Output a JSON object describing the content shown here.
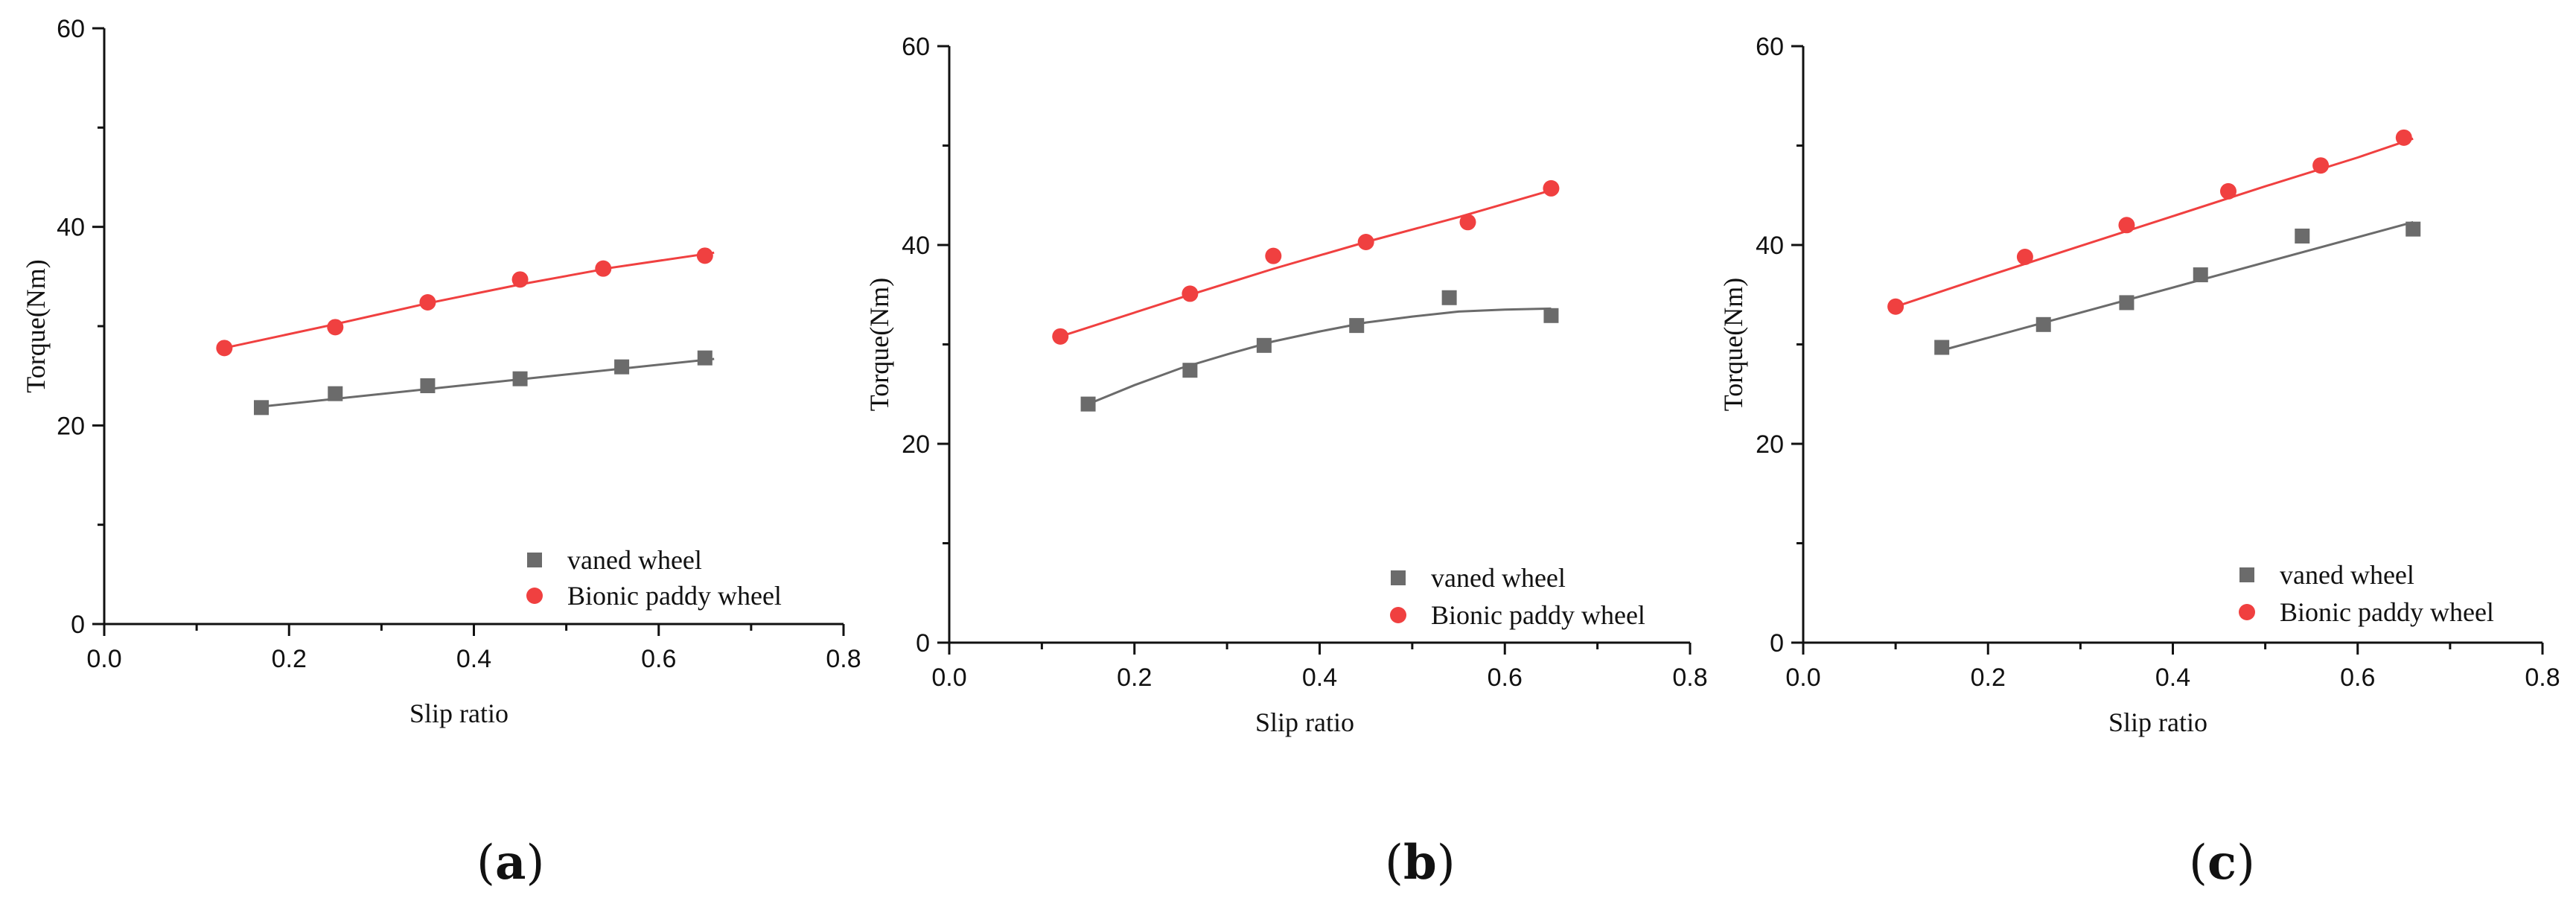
{
  "chart_data": [
    {
      "type": "scatter",
      "panel_label": "a",
      "xlabel": "Slip ratio",
      "ylabel": "Torque(Nm)",
      "xlim": [
        0.0,
        0.8
      ],
      "ylim": [
        0,
        60
      ],
      "xticks": [
        "0.0",
        "0.2",
        "0.4",
        "0.6",
        "0.8"
      ],
      "yticks": [
        "0",
        "20",
        "40",
        "60"
      ],
      "legend_position": "bottom-right",
      "series": [
        {
          "name": "vaned wheel",
          "marker": "square",
          "color": "#6b6b6b",
          "x": [
            0.17,
            0.25,
            0.35,
            0.45,
            0.56,
            0.65
          ],
          "y": [
            21.8,
            23.2,
            24.0,
            24.7,
            25.9,
            26.8
          ],
          "fit": [
            [
              0.17,
              21.9
            ],
            [
              0.66,
              26.7
            ]
          ]
        },
        {
          "name": "Bionic paddy wheel",
          "marker": "circle",
          "color": "#f04040",
          "x": [
            0.13,
            0.25,
            0.35,
            0.45,
            0.54,
            0.65
          ],
          "y": [
            27.8,
            29.9,
            32.4,
            34.7,
            35.8,
            37.1
          ],
          "fit": [
            [
              0.13,
              27.8
            ],
            [
              0.25,
              30.2
            ],
            [
              0.35,
              32.3
            ],
            [
              0.45,
              34.2
            ],
            [
              0.55,
              35.9
            ],
            [
              0.66,
              37.4
            ]
          ]
        }
      ]
    },
    {
      "type": "scatter",
      "panel_label": "b",
      "xlabel": "Slip  ratio",
      "ylabel": "Torque(Nm)",
      "xlim": [
        0.0,
        0.8
      ],
      "ylim": [
        0,
        60
      ],
      "xticks": [
        "0.0",
        "0.2",
        "0.4",
        "0.6",
        "0.8"
      ],
      "yticks": [
        "0",
        "20",
        "40",
        "60"
      ],
      "legend_position": "bottom-right",
      "series": [
        {
          "name": "vaned wheel",
          "marker": "square",
          "color": "#6b6b6b",
          "x": [
            0.15,
            0.26,
            0.34,
            0.44,
            0.54,
            0.65
          ],
          "y": [
            24.0,
            27.4,
            29.9,
            31.9,
            34.7,
            32.9
          ],
          "fit": [
            [
              0.15,
              24.0
            ],
            [
              0.2,
              25.9
            ],
            [
              0.25,
              27.6
            ],
            [
              0.3,
              29.0
            ],
            [
              0.35,
              30.3
            ],
            [
              0.4,
              31.3
            ],
            [
              0.45,
              32.2
            ],
            [
              0.5,
              32.8
            ],
            [
              0.55,
              33.3
            ],
            [
              0.6,
              33.5
            ],
            [
              0.65,
              33.6
            ]
          ]
        },
        {
          "name": "Bionic paddy wheel",
          "marker": "circle",
          "color": "#f04040",
          "x": [
            0.12,
            0.26,
            0.35,
            0.45,
            0.56,
            0.65
          ],
          "y": [
            30.8,
            35.1,
            38.9,
            40.3,
            42.3,
            45.7
          ],
          "fit": [
            [
              0.12,
              30.8
            ],
            [
              0.25,
              34.7
            ],
            [
              0.35,
              37.6
            ],
            [
              0.45,
              40.3
            ],
            [
              0.55,
              42.8
            ],
            [
              0.65,
              45.5
            ]
          ]
        }
      ]
    },
    {
      "type": "scatter",
      "panel_label": "c",
      "xlabel": "Slip  ratio",
      "ylabel": "Torque(Nm)",
      "xlim": [
        0.0,
        0.8
      ],
      "ylim": [
        0,
        60
      ],
      "xticks": [
        "0.0",
        "0.2",
        "0.4",
        "0.6",
        "0.8"
      ],
      "yticks": [
        "0",
        "20",
        "40",
        "60"
      ],
      "legend_position": "bottom-right",
      "series": [
        {
          "name": "vaned wheel",
          "marker": "square",
          "color": "#6b6b6b",
          "x": [
            0.15,
            0.26,
            0.35,
            0.43,
            0.54,
            0.66
          ],
          "y": [
            29.7,
            32.0,
            34.2,
            37.0,
            40.9,
            41.6
          ],
          "fit": [
            [
              0.15,
              29.4
            ],
            [
              0.66,
              42.3
            ]
          ]
        },
        {
          "name": "Bionic paddy wheel",
          "marker": "circle",
          "color": "#f04040",
          "x": [
            0.1,
            0.24,
            0.35,
            0.46,
            0.56,
            0.65
          ],
          "y": [
            33.8,
            38.8,
            42.0,
            45.4,
            48.0,
            50.8
          ],
          "fit": [
            [
              0.1,
              33.8
            ],
            [
              0.2,
              36.9
            ],
            [
              0.3,
              39.9
            ],
            [
              0.4,
              42.9
            ],
            [
              0.5,
              45.9
            ],
            [
              0.6,
              48.8
            ],
            [
              0.66,
              50.7
            ]
          ]
        }
      ]
    }
  ]
}
